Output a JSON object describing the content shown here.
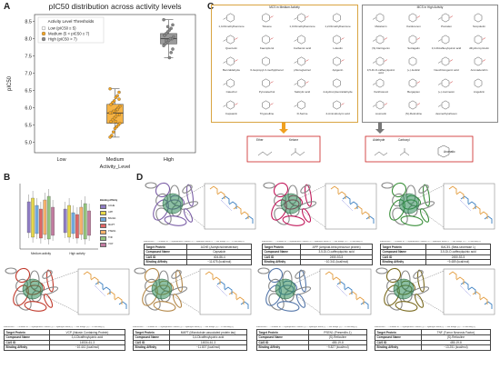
{
  "panel_letters": {
    "A": "A",
    "B": "B",
    "C": "C",
    "D": "D"
  },
  "panel_a": {
    "title": "pIC50 distribution across activity levels",
    "legend_title": "Activity Level Thresholds",
    "legend_items": [
      "Low (pIC50 ≤ 5)",
      "Medium (5 < pIC50 ≤ 7)",
      "High (pIC50 > 7)"
    ],
    "ylabel": "pIC50",
    "xlabel": "Activity_Level",
    "yticks": [
      "5.0",
      "5.5",
      "6.0",
      "6.5",
      "7.0",
      "7.5",
      "8.0",
      "8.5"
    ],
    "xticks": [
      "Low",
      "Medium",
      "High"
    ],
    "colors": {
      "medium": "#f5a623",
      "high": "#888888"
    }
  },
  "chart_data": {
    "type": "scatter",
    "title": "pIC50 distribution across activity levels",
    "xlabel": "Activity_Level",
    "ylabel": "pIC50",
    "categories": [
      "Low",
      "Medium",
      "High"
    ],
    "ylim": [
      4.7,
      8.7
    ],
    "series": [
      {
        "name": "Medium (5 < pIC50 ≤ 7)",
        "category": "Medium",
        "box": {
          "min": 5.15,
          "q1": 5.55,
          "median": 5.85,
          "q3": 6.1,
          "max": 6.55
        },
        "values": [
          6.55,
          6.45,
          6.35,
          6.3,
          6.2,
          6.15,
          6.1,
          6.05,
          6.0,
          5.95,
          5.9,
          5.9,
          5.85,
          5.85,
          5.8,
          5.8,
          5.75,
          5.7,
          5.65,
          5.6,
          5.55,
          5.5,
          5.45,
          5.4,
          5.3,
          5.2,
          5.15,
          6.25,
          5.95,
          5.6
        ]
      },
      {
        "name": "High (pIC50 > 7)",
        "category": "High",
        "box": {
          "min": 7.45,
          "q1": 7.85,
          "median": 8.0,
          "q3": 8.15,
          "max": 8.55
        },
        "values": [
          8.55,
          8.4,
          8.3,
          8.25,
          8.2,
          8.15,
          8.1,
          8.05,
          8.0,
          8.0,
          7.95,
          7.9,
          7.85,
          7.8,
          7.7,
          7.6,
          7.45,
          8.35,
          7.95,
          8.1
        ]
      }
    ],
    "legend_position": "top-left",
    "grid": false
  },
  "panel_b": {
    "legend_title": "Binding Affinity",
    "legend_items": [
      {
        "label": "ACHE",
        "color": "#8e7cc3"
      },
      {
        "label": "APP",
        "color": "#e6d84a"
      },
      {
        "label": "BACE1",
        "color": "#6fa8dc"
      },
      {
        "label": "MAPT",
        "color": "#e06666"
      },
      {
        "label": "PSEN1",
        "color": "#f6b26b"
      },
      {
        "label": "TNF",
        "color": "#93c47d"
      },
      {
        "label": "VCP",
        "color": "#c27ba0"
      }
    ],
    "xticks": [
      "Medium activity",
      "High activity"
    ]
  },
  "panel_c": {
    "medium_title": "MCS in Medium Activity",
    "high_title": "MCS in High Activity",
    "medium_mols": [
      "1,4-Dimethylbenzene",
      "Toluene",
      "1,3-Dimethylbenzene",
      "1,2-Dimethylbenzene",
      "Quercetin",
      "Kaempferol",
      "Carbamic acid",
      "Luteolin",
      "Benzaldehyde",
      "6-Isopropyl-3-methylphenol",
      "phloroglucinol",
      "Apigenin",
      "Catechol",
      "Pyrocatechol",
      "Salicylic acid",
      "4-Hydroxybenzaldehyde",
      "Capsaicin",
      "Trigonelline",
      "D-Serine",
      "4-Aminobutyric acid"
    ],
    "high_mols": [
      "Melatonin",
      "Kanferenon",
      "Psoralen",
      "Scopoletin",
      "(S)-Naringenin",
      "Sotragalin",
      "3,4-Dicaffeoylquinic acid",
      "dihydromyricetin",
      "3,5-Di-O-caffeoylquinic acid",
      "(+)-Isofolic",
      "Neochlorogenic acid",
      "Aromadendrin",
      "Xanthotoxol",
      "Bergapten",
      "(+)-marmesin",
      "Angelicin",
      "coumarin",
      "(S)-Reticuline",
      "desmethylurfeson"
    ],
    "medium_groups": [
      "Ether",
      "Ketone"
    ],
    "high_groups": [
      "Aldehyde",
      "Carboxyl",
      "Aromatic"
    ],
    "colors": {
      "medium_border": "#d9a441",
      "high_border": "#888888",
      "arrow_medium": "#f0a020",
      "arrow_high": "#777777",
      "group_border": "#cc2222"
    }
  },
  "panel_d": {
    "interaction_legend": "Interactions: - - - Number of: - - Hydrophobic Contact (3) — Hydrogen Bond (2) - - Salt Bridge (1) - - Pi-Stacking (1)",
    "cards": [
      {
        "protein": "ACHE (Acetylcholinesterase)",
        "compound": "Capsaicin",
        "cas": "404-86-4",
        "affinity": "−11.675 (kcal/mol)"
      },
      {
        "protein": "APP (Amyloid-beta precursor protein)",
        "compound": "3,5-Di-O-caffeoylquinic acid",
        "cas": "2450-53-5",
        "affinity": "−10.341 (kcal/mol)"
      },
      {
        "protein": "BACE1 (Beta-secretase 1)",
        "compound": "3,5-Di-O-caffeoylquinic acid",
        "cas": "2450-53-5",
        "affinity": "−9.489 (kcal/mol)"
      },
      {
        "protein": "VCP (Valosin Containing Protein)",
        "compound": "3,4-Dicaffeoylquinic acid",
        "cas": "14534-61-3",
        "affinity": "−10.441 (kcal/mol)"
      },
      {
        "protein": "MAPT (Microtubule-associated protein tau)",
        "compound": "3,4-Dicaffeoylquinic acid",
        "cas": "14534-61-3",
        "affinity": "−11.807 (kcal/mol)"
      },
      {
        "protein": "PSEN1 (Presenilin-1)",
        "compound": "(S)-Reticuline",
        "cas": "485-19-8",
        "affinity": "−9.827 (kcal/mol)"
      },
      {
        "protein": "TNF (Tumor Necrosis Factor)",
        "compound": "(S)-Reticuline",
        "cas": "485-19-8",
        "affinity": "−13.251 (kcal/mol)"
      }
    ],
    "row_keys": {
      "protein": "Target Protein",
      "compound": "Compound Name",
      "cas": "CAS ID",
      "affinity": "Binding Affinity"
    }
  }
}
